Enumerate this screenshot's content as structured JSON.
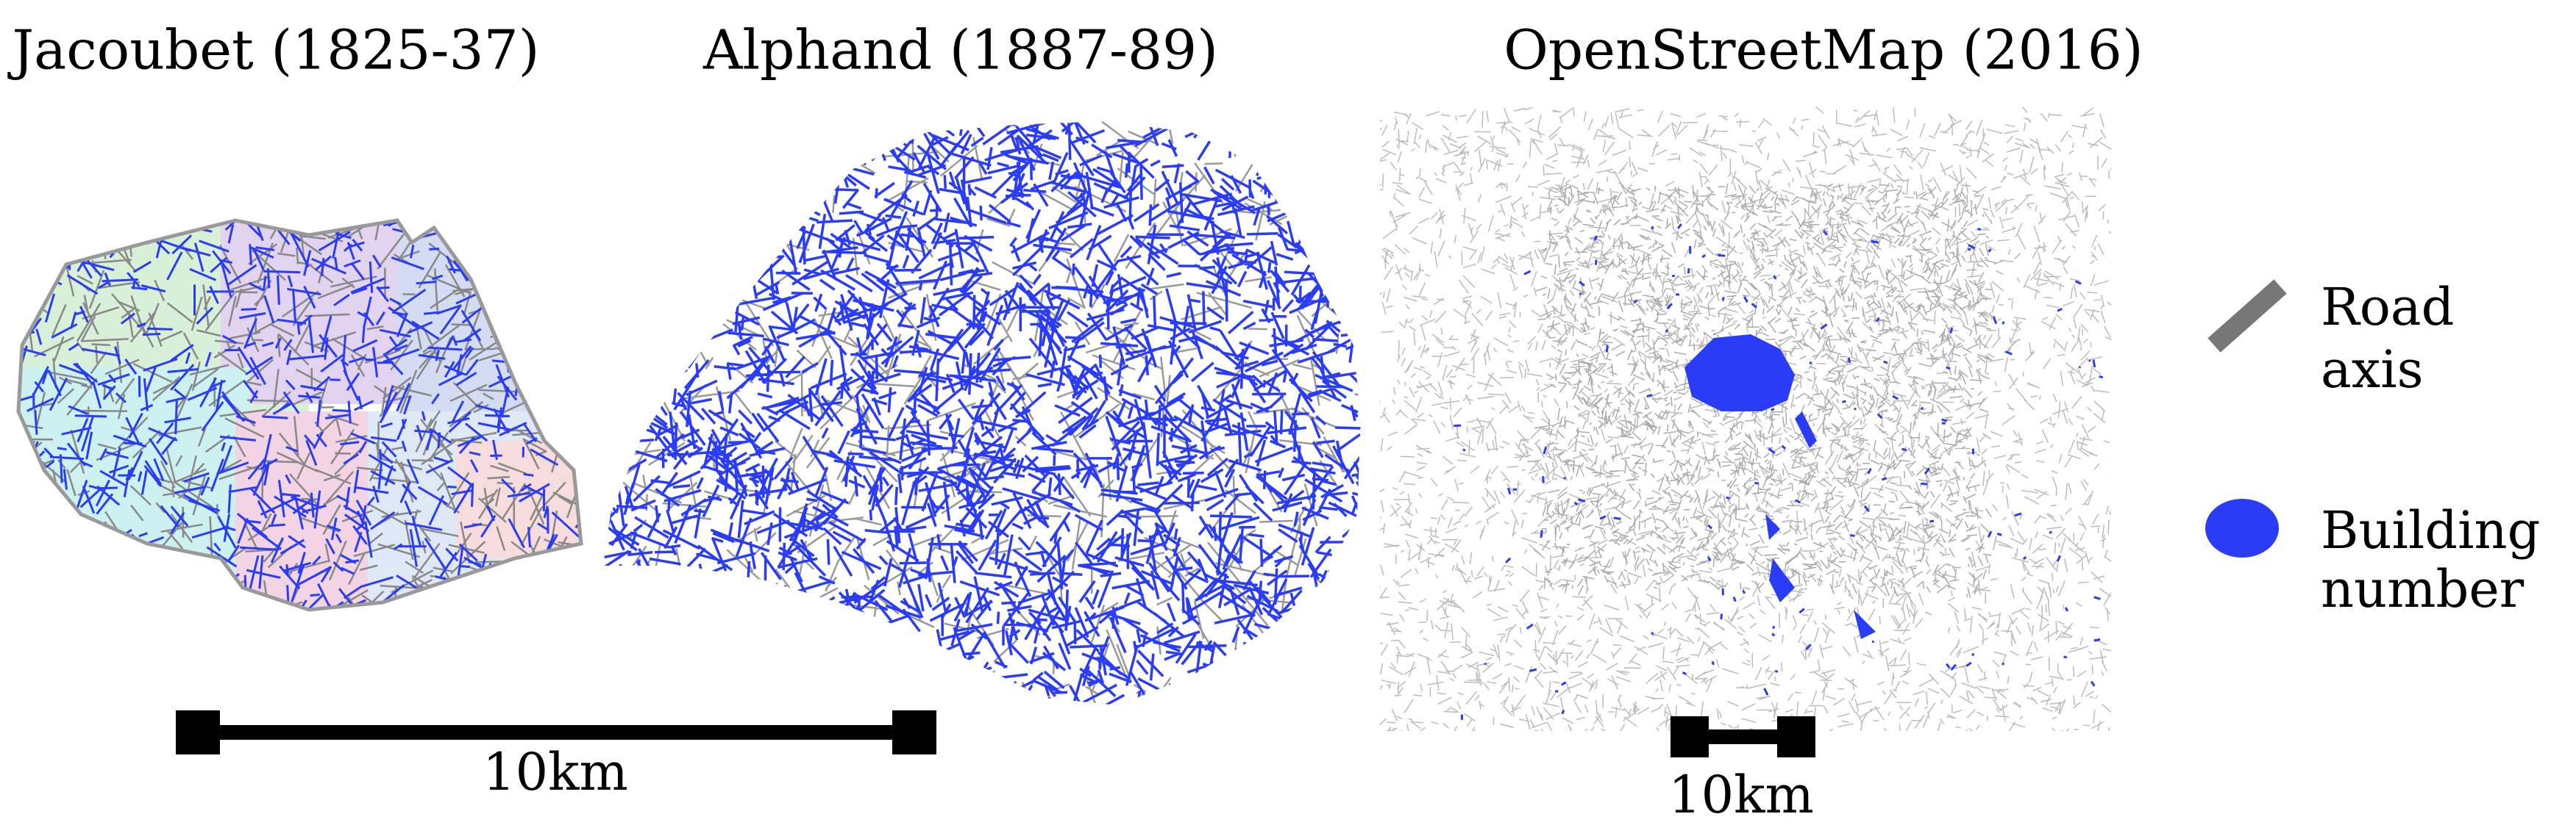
{
  "panels": [
    {
      "title": "Jacoubet (1825-37)"
    },
    {
      "title": "Alphand (1887-89)"
    },
    {
      "title": "OpenStreetMap (2016)"
    }
  ],
  "scale_bars": [
    {
      "label": "10km"
    },
    {
      "label": "10km"
    }
  ],
  "legend": [
    {
      "lines": [
        "Road",
        "axis"
      ]
    },
    {
      "lines": [
        "Building",
        "number"
      ]
    }
  ]
}
